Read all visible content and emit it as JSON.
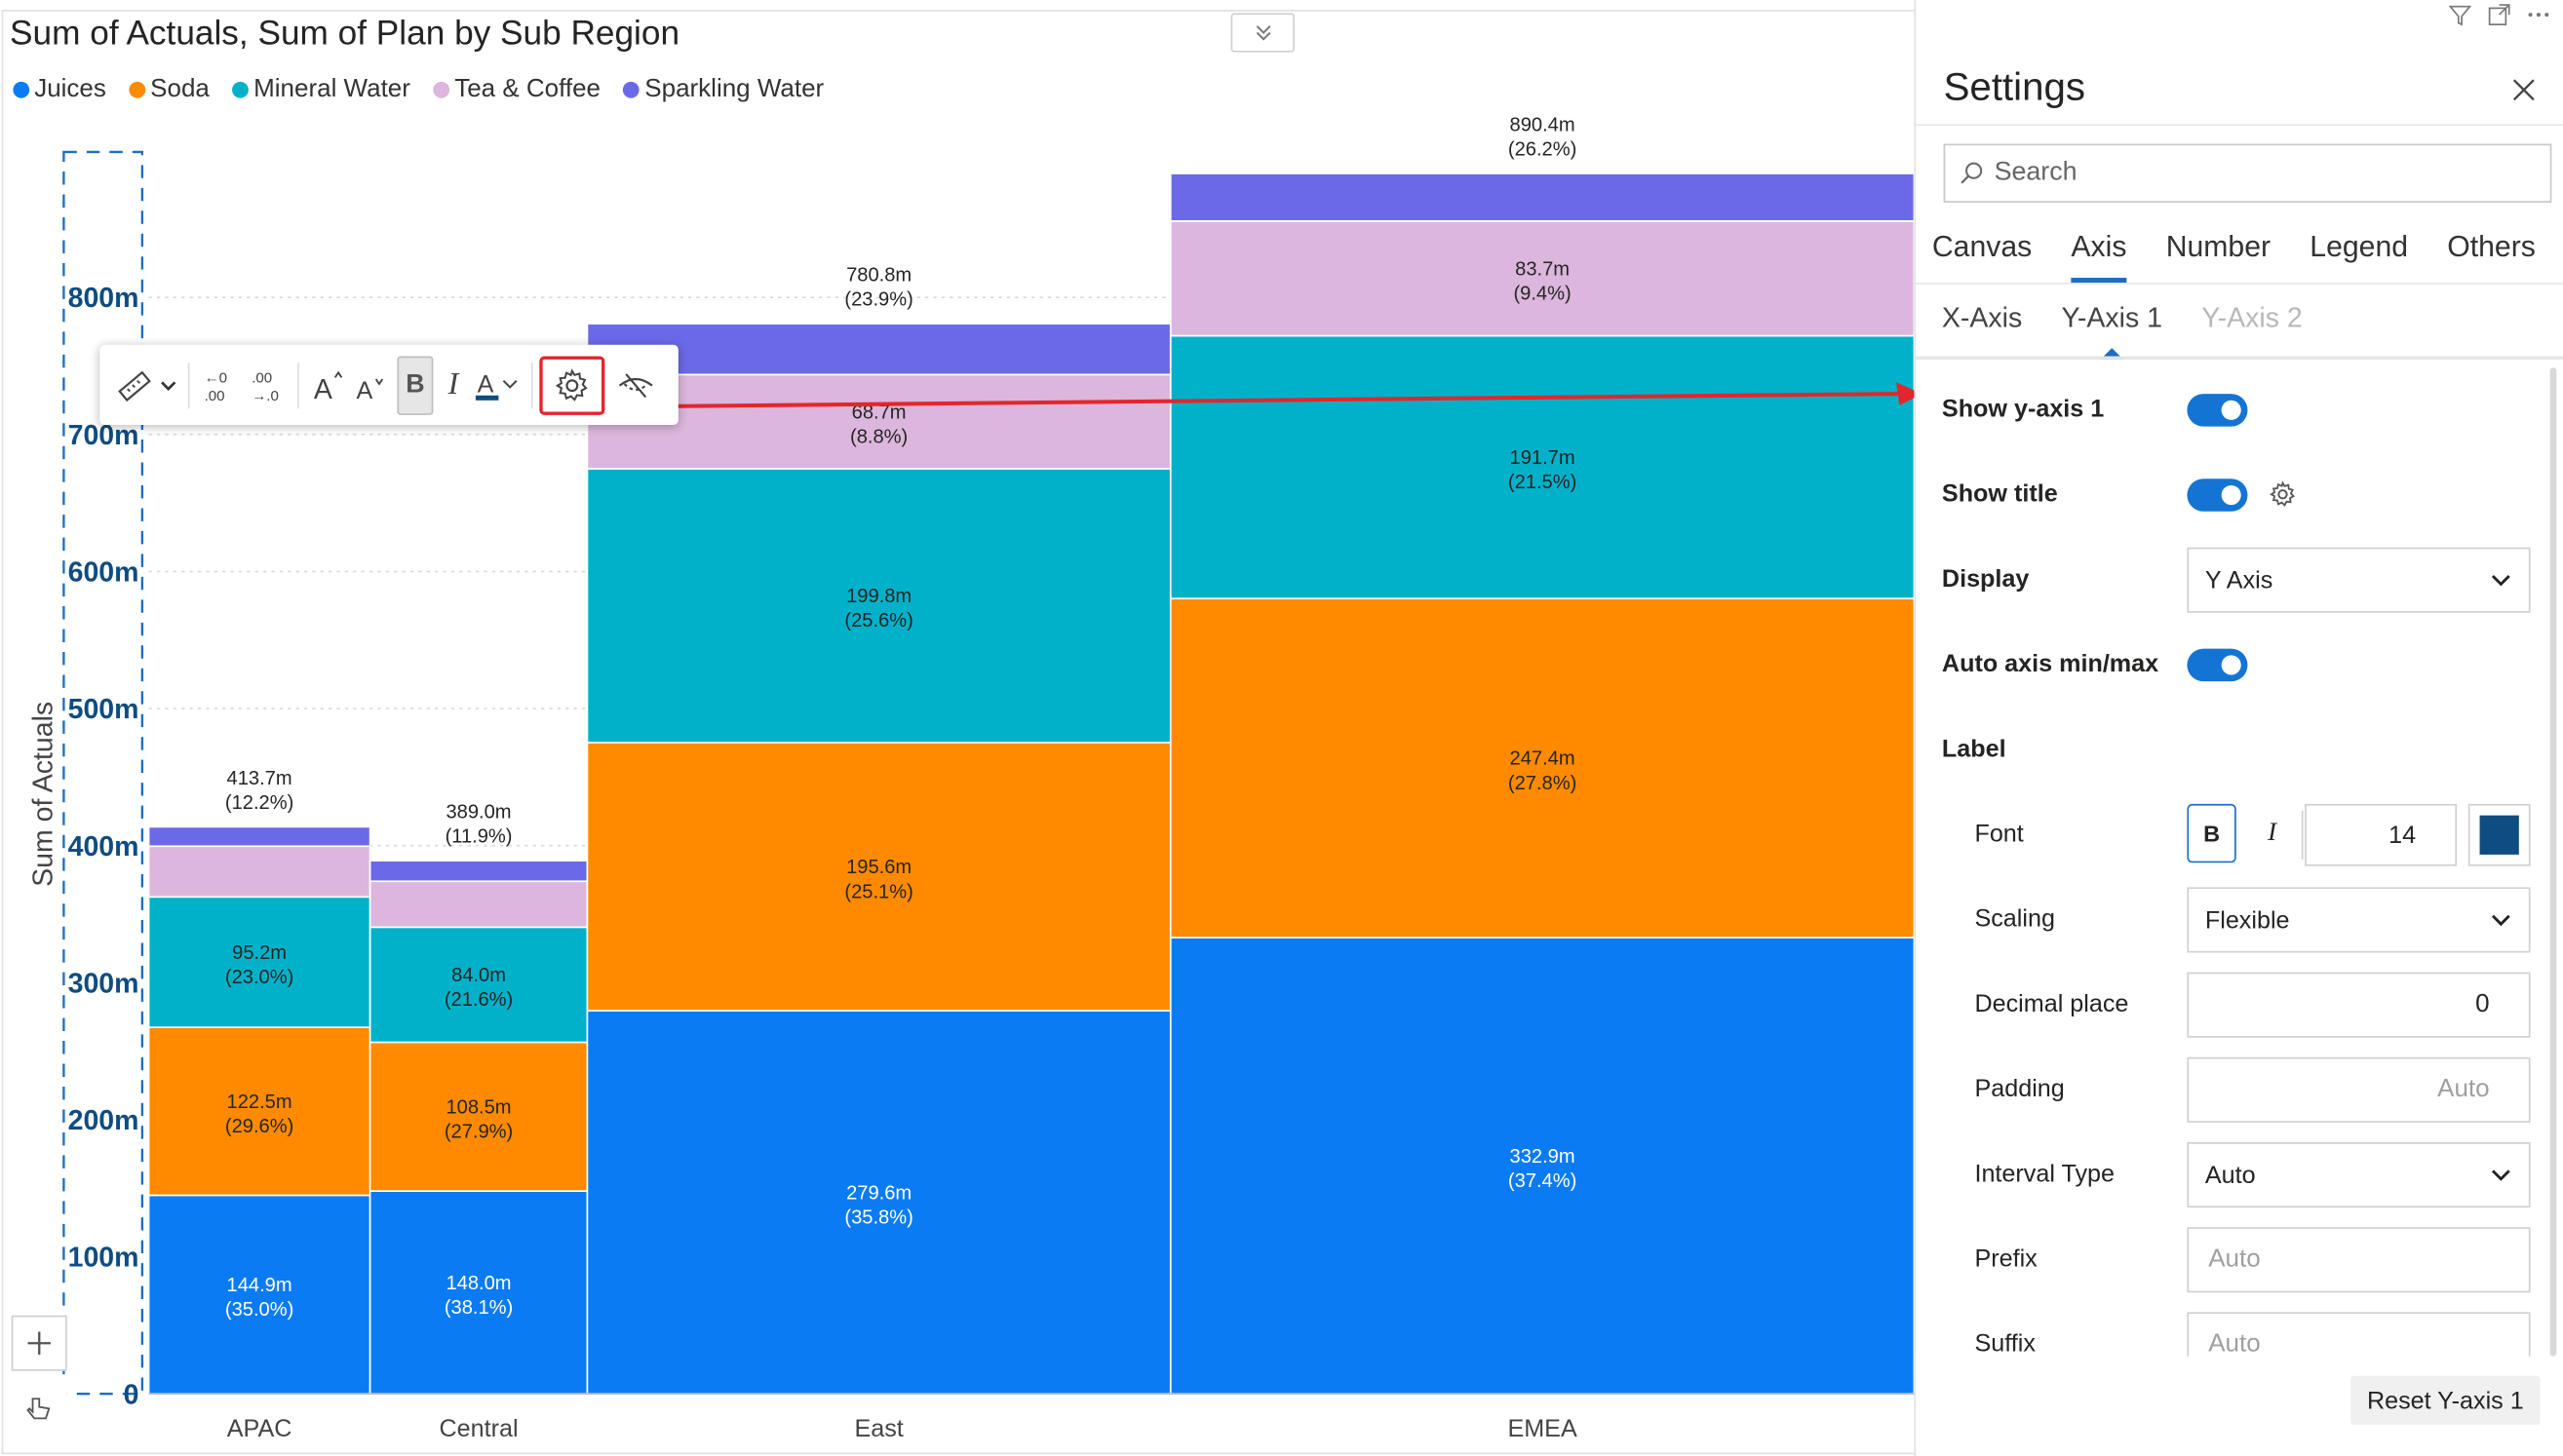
{
  "chart_title": "Sum of Actuals, Sum of Plan by Sub Region",
  "legend": [
    {
      "name": "Juices",
      "color": "#0b7bf3"
    },
    {
      "name": "Soda",
      "color": "#ff8a00"
    },
    {
      "name": "Mineral Water",
      "color": "#00b1c9"
    },
    {
      "name": "Tea & Coffee",
      "color": "#dcb6dd"
    },
    {
      "name": "Sparkling Water",
      "color": "#6b69e8"
    }
  ],
  "chart_data": {
    "type": "bar",
    "subtype": "marimekko (stacked, variable width)",
    "title": "Sum of Actuals, Sum of Plan by Sub Region",
    "ylabel": "Sum of Actuals",
    "xlabel": "",
    "ylim": [
      0,
      900
    ],
    "y_ticks": [
      "0",
      "100m",
      "200m",
      "300m",
      "400m",
      "500m",
      "600m",
      "700m",
      "800m"
    ],
    "grid": true,
    "legend_position": "top-left",
    "categories": [
      "APAC",
      "Central",
      "East",
      "EMEA"
    ],
    "category_width_share": [
      0.076,
      0.0746,
      0.2003,
      0.2553
    ],
    "totals": [
      {
        "value": 413.7,
        "label": "413.7m",
        "pct": "(12.2%)"
      },
      {
        "value": 389.0,
        "label": "389.0m",
        "pct": "(11.9%)"
      },
      {
        "value": 780.8,
        "label": "780.8m",
        "pct": "(23.9%)"
      },
      {
        "value": 890.4,
        "label": "890.4m",
        "pct": "(26.2%)"
      }
    ],
    "series": [
      {
        "name": "Juices",
        "color": "#0b7bf3",
        "values": [
          144.9,
          148.0,
          279.6,
          332.9
        ],
        "labels": [
          "144.9m",
          "148.0m",
          "279.6m",
          "332.9m"
        ],
        "pcts": [
          "(35.0%)",
          "(38.1%)",
          "(35.8%)",
          "(37.4%)"
        ],
        "label_color": "#ffffff"
      },
      {
        "name": "Soda",
        "color": "#ff8a00",
        "values": [
          122.5,
          108.5,
          195.6,
          247.4
        ],
        "labels": [
          "122.5m",
          "108.5m",
          "195.6m",
          "247.4m"
        ],
        "pcts": [
          "(29.6%)",
          "(27.9%)",
          "(25.1%)",
          "(27.8%)"
        ],
        "label_color": "#252423"
      },
      {
        "name": "Mineral Water",
        "color": "#00b1c9",
        "values": [
          95.2,
          84.0,
          199.8,
          191.7
        ],
        "labels": [
          "95.2m",
          "84.0m",
          "199.8m",
          "191.7m"
        ],
        "pcts": [
          "(23.0%)",
          "(21.6%)",
          "(25.6%)",
          "(21.5%)"
        ],
        "label_color": "#252423"
      },
      {
        "name": "Tea & Coffee",
        "color": "#dcb6dd",
        "values": [
          37.0,
          33.5,
          68.7,
          83.7
        ],
        "labels": [
          "",
          "",
          "68.7m",
          "83.7m"
        ],
        "pcts": [
          "",
          "",
          "(8.8%)",
          "(9.4%)"
        ],
        "label_color": "#252423"
      },
      {
        "name": "Sparkling Water",
        "color": "#6b69e8",
        "values": [
          14.1,
          15.0,
          37.1,
          34.7
        ],
        "labels": [
          "",
          "",
          "",
          ""
        ],
        "pcts": [
          "",
          "",
          "",
          ""
        ],
        "label_color": "#ffffff"
      }
    ]
  },
  "toolbar": {
    "items": [
      "ruler-icon",
      "chevron-down-icon",
      "decrease-decimal-icon",
      "increase-decimal-icon",
      "font-size-increase-icon",
      "font-size-decrease-icon",
      "bold",
      "italic",
      "font-color-icon",
      "gear-icon",
      "hide-icon"
    ],
    "bold_label": "B",
    "italic_label": "I"
  },
  "settings": {
    "title": "Settings",
    "search_placeholder": "Search",
    "tabs": [
      "Canvas",
      "Axis",
      "Number",
      "Legend",
      "Others"
    ],
    "active_tab": "Axis",
    "subtabs": [
      "X-Axis",
      "Y-Axis 1",
      "Y-Axis 2"
    ],
    "active_subtab": "Y-Axis 1",
    "show_y_axis_label": "Show y-axis 1",
    "show_y_axis_on": true,
    "show_title_label": "Show title",
    "show_title_on": true,
    "display_label": "Display",
    "display_value": "Y Axis",
    "auto_minmax_label": "Auto axis min/max",
    "auto_minmax_on": true,
    "label_section": "Label",
    "font_label": "Font",
    "font_bold": "B",
    "font_italic": "I",
    "font_size": "14",
    "font_color": "#0f4c81",
    "scaling_label": "Scaling",
    "scaling_value": "Flexible",
    "decimal_label": "Decimal place",
    "decimal_value": "0",
    "padding_label": "Padding",
    "padding_placeholder": "Auto",
    "interval_label": "Interval Type",
    "interval_value": "Auto",
    "prefix_label": "Prefix",
    "prefix_placeholder": "Auto",
    "suffix_label": "Suffix",
    "suffix_placeholder": "Auto",
    "reset_label": "Reset Y-axis 1"
  }
}
